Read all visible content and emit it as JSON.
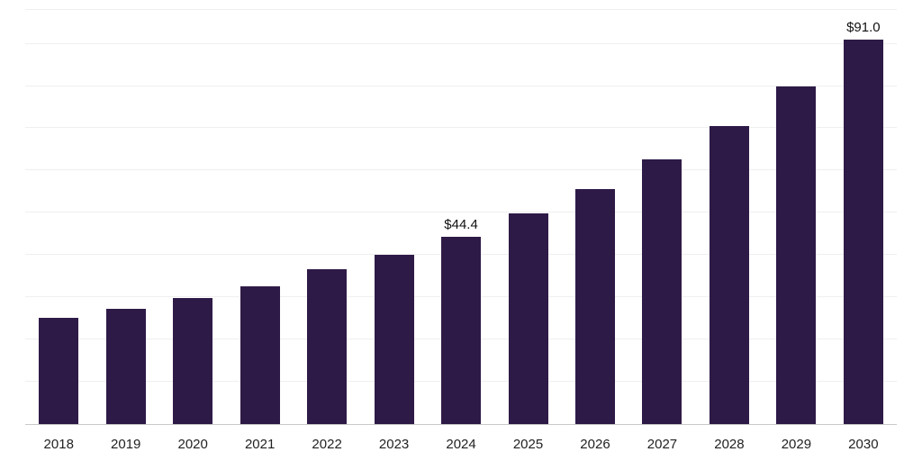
{
  "chart_data": {
    "type": "bar",
    "title": "",
    "xlabel": "",
    "ylabel": "",
    "categories": [
      "2018",
      "2019",
      "2020",
      "2021",
      "2022",
      "2023",
      "2024",
      "2025",
      "2026",
      "2027",
      "2028",
      "2029",
      "2030"
    ],
    "values": [
      25.2,
      27.3,
      29.8,
      32.5,
      36.6,
      40.0,
      44.4,
      49.9,
      55.7,
      62.6,
      70.6,
      80.0,
      91.0
    ],
    "data_labels": {
      "2024": "$44.4",
      "2030": "$91.0"
    },
    "ylim": [
      0,
      98
    ],
    "gridline_step": 10,
    "grid_on": true,
    "legend": "none",
    "bar_color": "#2e1a47",
    "grid_color": "#efefef",
    "axis_line_color": "#c9c9c9",
    "tick_label_color": "#222222",
    "data_label_color": "#111111"
  }
}
